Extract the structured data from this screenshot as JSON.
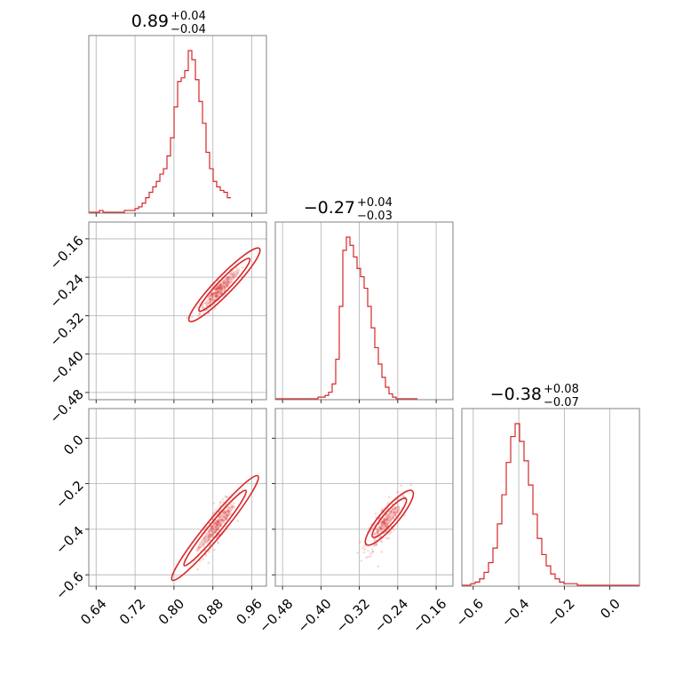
{
  "chart_data": {
    "type": "corner",
    "parameters": [
      {
        "median": "0.89",
        "upper": "+0.04",
        "lower": "−0.04",
        "range": [
          0.625,
          0.99
        ],
        "ticks": [
          0.64,
          0.72,
          0.8,
          0.88,
          0.96
        ],
        "tick_labels": [
          "0.64",
          "0.72",
          "0.80",
          "0.88",
          "0.96"
        ],
        "hist_start": 0.625,
        "hist_step": 0.0073,
        "hist_counts": [
          0,
          0,
          0,
          1,
          0,
          0,
          0,
          0,
          0,
          0,
          1,
          1,
          1,
          2,
          3,
          5,
          8,
          11,
          14,
          17,
          21,
          24,
          31,
          41,
          58,
          72,
          74,
          78,
          89,
          84,
          73,
          61,
          49,
          33,
          24,
          17,
          14,
          12,
          11,
          8
        ]
      },
      {
        "median": "−0.27",
        "upper": "+0.04",
        "lower": "−0.03",
        "range": [
          -0.495,
          -0.125
        ],
        "ticks": [
          -0.48,
          -0.4,
          -0.32,
          -0.24,
          -0.16
        ],
        "tick_labels": [
          "−0.48",
          "−0.40",
          "−0.32",
          "−0.24",
          "−0.16"
        ],
        "hist_start": -0.495,
        "hist_step": 0.0074,
        "hist_counts": [
          0,
          0,
          0,
          0,
          0,
          0,
          0,
          0,
          0,
          0,
          0,
          0,
          1,
          1,
          2,
          4,
          9,
          24,
          56,
          90,
          98,
          93,
          86,
          79,
          74,
          67,
          56,
          43,
          31,
          21,
          13,
          7,
          3,
          1,
          0,
          0,
          0,
          0,
          0,
          0
        ]
      },
      {
        "median": "−0.38",
        "upper": "+0.08",
        "lower": "−0.07",
        "range": [
          -0.65,
          0.13
        ],
        "ticks": [
          -0.6,
          -0.4,
          -0.2,
          0.0
        ],
        "tick_labels": [
          "−0.6",
          "−0.4",
          "−0.2",
          "0.0"
        ],
        "y_tick_labels": [
          "−0.6",
          "−0.4",
          "−0.2",
          "0.0"
        ],
        "hist_start": -0.65,
        "hist_step": 0.0195,
        "hist_counts": [
          0,
          0,
          1,
          2,
          4,
          8,
          14,
          23,
          38,
          56,
          76,
          92,
          100,
          89,
          77,
          62,
          44,
          29,
          19,
          12,
          7,
          4,
          2,
          1,
          1,
          1,
          0,
          0,
          0,
          0,
          0,
          0,
          0,
          0,
          0,
          0,
          0,
          0,
          0,
          0
        ]
      }
    ],
    "pairs": [
      {
        "x_param": 0,
        "y_param": 1,
        "slope": 1.05,
        "x_mid": 0.89,
        "y_mid": -0.27,
        "scatter_x": [
          0.81,
          0.99
        ],
        "spread": 0.012
      },
      {
        "x_param": 0,
        "y_param": 2,
        "slope": 2.6,
        "x_mid": 0.89,
        "y_mid": -0.38,
        "scatter_x": [
          0.77,
          0.99
        ],
        "spread": 0.018
      },
      {
        "x_param": 1,
        "y_param": 2,
        "slope": 2.45,
        "x_mid": -0.27,
        "y_mid": -0.38,
        "scatter_x": [
          -0.32,
          -0.2
        ],
        "spread": 0.02
      }
    ],
    "grid": true,
    "color": "#d62728"
  }
}
